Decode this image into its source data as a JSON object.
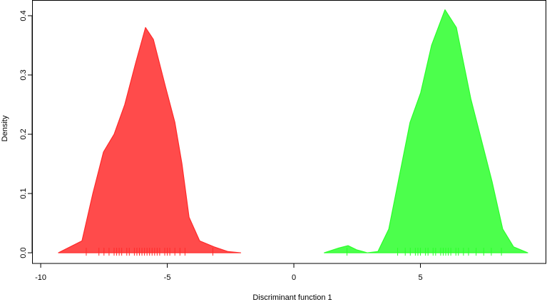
{
  "chart_data": {
    "type": "density",
    "xlabel": "Discriminant function 1",
    "ylabel": "Density",
    "xlim": [
      -10.34,
      10.0
    ],
    "ylim": [
      -0.018,
      0.4265
    ],
    "xticks": [
      -10,
      -5,
      0,
      5
    ],
    "yticks": [
      {
        "value": 0,
        "label": "0.0"
      },
      0.1,
      0.2,
      0.3,
      0.4
    ],
    "series": [
      {
        "color": "#ff4b4b",
        "line_color": "#ff2a2a",
        "x": [
          -9.3,
          -8.37,
          -7.94,
          -7.52,
          -7.1,
          -6.68,
          -6.25,
          -5.86,
          -5.55,
          -5.07,
          -4.7,
          -4.42,
          -4.14,
          -3.72,
          -3.15,
          -2.6,
          -2.1
        ],
        "values": [
          0,
          0.02,
          0.1,
          0.17,
          0.2,
          0.25,
          0.32,
          0.38,
          0.36,
          0.28,
          0.22,
          0.15,
          0.06,
          0.02,
          0.01,
          0.002,
          0
        ],
        "rug": [
          -8.2,
          -7.7,
          -7.5,
          -7.3,
          -7.1,
          -7.0,
          -6.9,
          -6.8,
          -6.6,
          -6.5,
          -6.3,
          -6.2,
          -6.1,
          -6.0,
          -5.9,
          -5.8,
          -5.7,
          -5.6,
          -5.5,
          -5.4,
          -5.3,
          -5.1,
          -5.0,
          -4.9,
          -4.7,
          -4.5,
          -4.3,
          -3.2
        ]
      },
      {
        "color": "#4cff4c",
        "line_color": "#2aff2a",
        "x": [
          1.2,
          1.77,
          2.14,
          2.48,
          2.9,
          3.32,
          3.75,
          4.17,
          4.59,
          5.01,
          5.44,
          5.97,
          6.42,
          6.99,
          7.41,
          7.83,
          8.25,
          8.68,
          9.24
        ],
        "values": [
          0,
          0.008,
          0.012,
          0.005,
          0,
          0.002,
          0.04,
          0.13,
          0.22,
          0.27,
          0.35,
          0.41,
          0.38,
          0.26,
          0.19,
          0.12,
          0.04,
          0.01,
          0
        ],
        "rug": [
          2.1,
          4.1,
          4.4,
          4.6,
          4.8,
          4.9,
          5.0,
          5.2,
          5.3,
          5.5,
          5.6,
          5.8,
          5.9,
          6.0,
          6.1,
          6.2,
          6.4,
          6.5,
          6.7,
          6.9,
          7.2,
          7.5,
          7.8,
          8.2
        ]
      }
    ]
  }
}
